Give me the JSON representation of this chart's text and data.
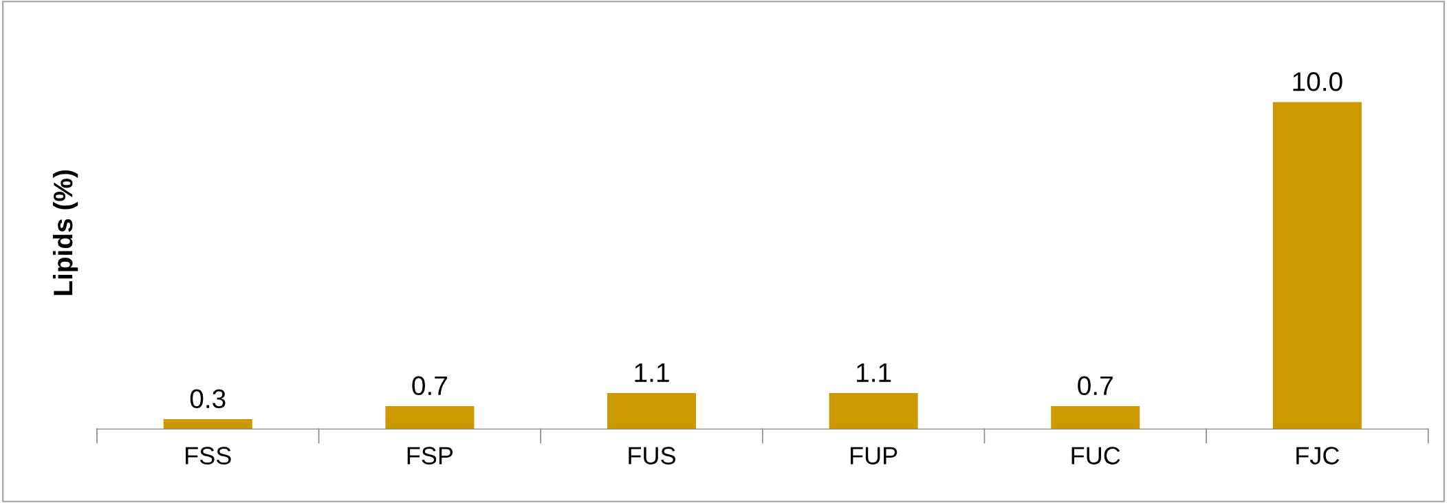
{
  "chart_data": {
    "type": "bar",
    "ylabel": "Lipids (%)",
    "categories": [
      "FSS",
      "FSP",
      "FUS",
      "FUP",
      "FUC",
      "FJC"
    ],
    "values": [
      0.3,
      0.7,
      1.1,
      1.1,
      0.7,
      10.0
    ],
    "value_labels": [
      "0.3",
      "0.7",
      "1.1",
      "1.1",
      "0.7",
      "10.0"
    ],
    "color": "#cc9900",
    "grid": false,
    "legend": false
  }
}
